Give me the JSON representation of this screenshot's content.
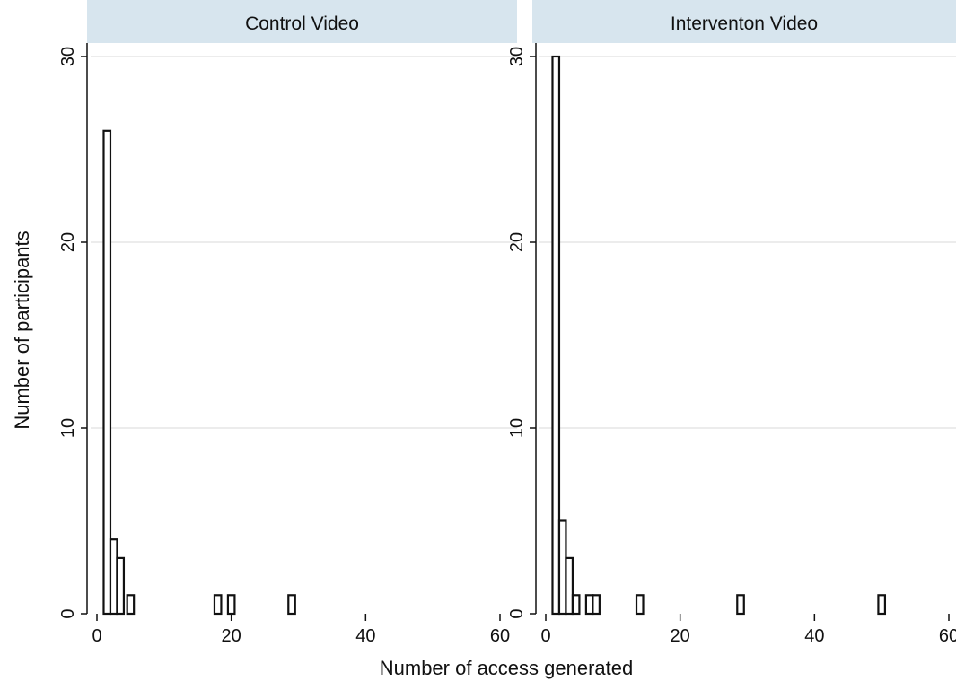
{
  "chart_data": {
    "type": "bar",
    "xlabel": "Number of access generated",
    "ylabel": "Number of participants",
    "xlim": [
      0,
      60
    ],
    "ylim": [
      0,
      30
    ],
    "x_ticks": [
      "0",
      "20",
      "40",
      "60"
    ],
    "y_ticks": [
      "0",
      "10",
      "20",
      "30"
    ],
    "grid": true,
    "panels": [
      {
        "title": "Control Video",
        "bars": [
          {
            "x": 1.5,
            "y": 26
          },
          {
            "x": 2.5,
            "y": 4
          },
          {
            "x": 3.5,
            "y": 3
          },
          {
            "x": 5,
            "y": 1
          },
          {
            "x": 18,
            "y": 1
          },
          {
            "x": 20,
            "y": 1
          },
          {
            "x": 29,
            "y": 1
          }
        ]
      },
      {
        "title": "Interventon Video",
        "bars": [
          {
            "x": 1.5,
            "y": 30
          },
          {
            "x": 2.5,
            "y": 5
          },
          {
            "x": 3.5,
            "y": 3
          },
          {
            "x": 4.5,
            "y": 1
          },
          {
            "x": 6.5,
            "y": 1
          },
          {
            "x": 7.5,
            "y": 1
          },
          {
            "x": 14,
            "y": 1
          },
          {
            "x": 29,
            "y": 1
          },
          {
            "x": 50,
            "y": 1
          }
        ]
      }
    ]
  }
}
